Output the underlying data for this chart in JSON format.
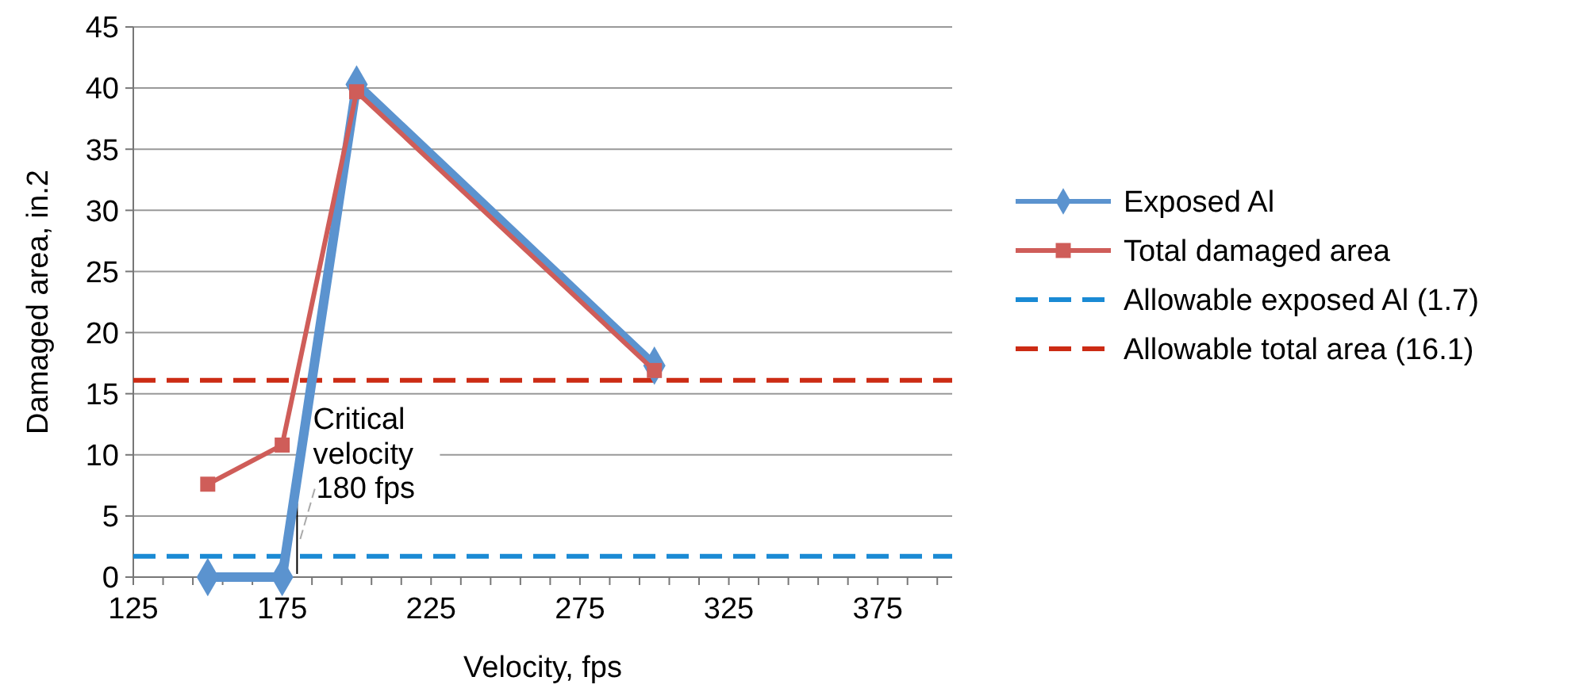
{
  "chart_data": {
    "type": "line",
    "xlabel": "Velocity, fps",
    "ylabel": "Damaged area, in.2",
    "xlim": [
      125,
      400
    ],
    "xticks": [
      125,
      {
        "value": 135,
        "label": null
      },
      {
        "value": 145,
        "label": null
      },
      {
        "value": 155,
        "label": null
      },
      {
        "value": 165,
        "label": null
      },
      175,
      {
        "value": 185,
        "label": null
      },
      {
        "value": 195,
        "label": null
      },
      {
        "value": 205,
        "label": null
      },
      {
        "value": 215,
        "label": null
      },
      225,
      {
        "value": 235,
        "label": null
      },
      {
        "value": 245,
        "label": null
      },
      {
        "value": 255,
        "label": null
      },
      {
        "value": 265,
        "label": null
      },
      275,
      {
        "value": 285,
        "label": null
      },
      {
        "value": 295,
        "label": null
      },
      {
        "value": 305,
        "label": null
      },
      {
        "value": 315,
        "label": null
      },
      325,
      {
        "value": 335,
        "label": null
      },
      {
        "value": 345,
        "label": null
      },
      {
        "value": 355,
        "label": null
      },
      {
        "value": 365,
        "label": null
      },
      375,
      {
        "value": 385,
        "label": null
      },
      {
        "value": 395,
        "label": null
      }
    ],
    "ylim": [
      0,
      45
    ],
    "yticks": [
      0,
      5,
      10,
      15,
      20,
      25,
      30,
      35,
      40,
      45
    ],
    "grid": "y",
    "legend": "right",
    "series": [
      {
        "name": "Exposed Al",
        "color": "#5b93cf",
        "marker": "diamond",
        "x": [
          150,
          175,
          200,
          300
        ],
        "values": [
          0,
          0,
          40.3,
          17.3
        ]
      },
      {
        "name": "Total damaged area",
        "color": "#cf5d59",
        "marker": "square",
        "x": [
          150,
          175,
          200,
          300
        ],
        "values": [
          7.6,
          10.8,
          39.7,
          16.9
        ]
      }
    ],
    "ref_lines": [
      {
        "axis": "y",
        "value": 1.7,
        "label": "Allowable exposed Al (1.7)",
        "color": "#1a8ad4",
        "line_style": "dashed"
      },
      {
        "axis": "y",
        "value": 16.1,
        "label": "Allowable total area (16.1)",
        "color": "#cc2b14",
        "line_style": "dashed"
      }
    ],
    "annotations": [
      {
        "text": "Critical\nvelocity\n180 fps",
        "x": 180,
        "y": 5
      }
    ]
  }
}
